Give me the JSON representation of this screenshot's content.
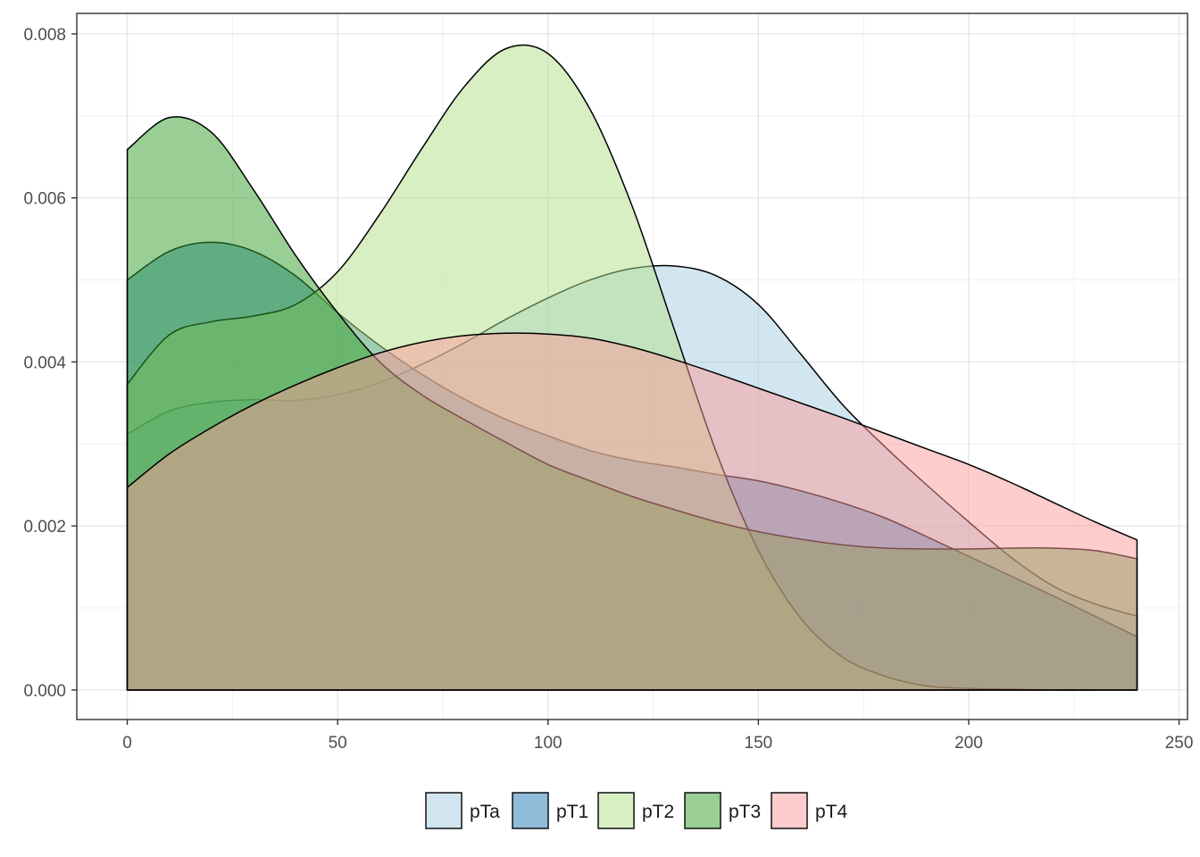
{
  "chart_data": {
    "type": "area",
    "title": "",
    "xlabel": "",
    "ylabel": "",
    "xlim": [
      -12,
      252
    ],
    "ylim": [
      -0.00036,
      0.00825
    ],
    "x_ticks": [
      0,
      50,
      100,
      150,
      200,
      250
    ],
    "x_tick_labels": [
      "0",
      "50",
      "100",
      "150",
      "200",
      "250"
    ],
    "y_ticks": [
      0,
      0.002,
      0.004,
      0.006,
      0.008
    ],
    "y_tick_labels": [
      "0.000",
      "0.002",
      "0.004",
      "0.006",
      "0.008"
    ],
    "grid": true,
    "legend_position": "bottom",
    "x": [
      0,
      10,
      20,
      30,
      40,
      50,
      60,
      70,
      80,
      90,
      100,
      110,
      120,
      130,
      140,
      150,
      160,
      170,
      180,
      190,
      200,
      210,
      220,
      230,
      240
    ],
    "series": [
      {
        "name": "pTa",
        "color": "#A6CEE3",
        "values": [
          0.00312,
          0.0034,
          0.00351,
          0.00354,
          0.00353,
          0.0036,
          0.00375,
          0.00397,
          0.00423,
          0.00452,
          0.00478,
          0.005,
          0.00514,
          0.00517,
          0.00505,
          0.0047,
          0.0041,
          0.00348,
          0.00297,
          0.0025,
          0.00205,
          0.00162,
          0.00127,
          0.00105,
          0.0009
        ]
      },
      {
        "name": "pT1",
        "color": "#1F78B4",
        "values": [
          0.005,
          0.00535,
          0.00546,
          0.00535,
          0.00505,
          0.0046,
          0.0042,
          0.00385,
          0.00355,
          0.0033,
          0.0031,
          0.00292,
          0.0028,
          0.00272,
          0.00263,
          0.00255,
          0.00243,
          0.00228,
          0.0021,
          0.00187,
          0.00163,
          0.00139,
          0.00115,
          0.0009,
          0.00065
        ]
      },
      {
        "name": "pT2",
        "color": "#B2DF8A",
        "values": [
          0.00373,
          0.00433,
          0.00449,
          0.00456,
          0.0047,
          0.0051,
          0.0058,
          0.0066,
          0.00735,
          0.00782,
          0.00776,
          0.00708,
          0.0059,
          0.0044,
          0.0029,
          0.0017,
          0.00088,
          0.0004,
          0.00017,
          5e-05,
          2e-05,
          1e-05,
          0.0,
          0.0,
          0.0
        ]
      },
      {
        "name": "pT3",
        "color": "#33A02C",
        "values": [
          0.00659,
          0.00698,
          0.0068,
          0.0061,
          0.0053,
          0.0046,
          0.004,
          0.0036,
          0.0033,
          0.00302,
          0.00275,
          0.00255,
          0.00236,
          0.0022,
          0.00205,
          0.00193,
          0.00184,
          0.00177,
          0.00173,
          0.00172,
          0.00172,
          0.00173,
          0.00173,
          0.0017,
          0.0016
        ]
      },
      {
        "name": "pT4",
        "color": "#FB9A99",
        "values": [
          0.00247,
          0.00288,
          0.0032,
          0.00348,
          0.00372,
          0.00393,
          0.00411,
          0.00424,
          0.00432,
          0.00435,
          0.00434,
          0.00429,
          0.00418,
          0.00403,
          0.00386,
          0.00368,
          0.0035,
          0.00332,
          0.00313,
          0.00294,
          0.00275,
          0.00253,
          0.00229,
          0.00205,
          0.00183
        ]
      }
    ]
  }
}
